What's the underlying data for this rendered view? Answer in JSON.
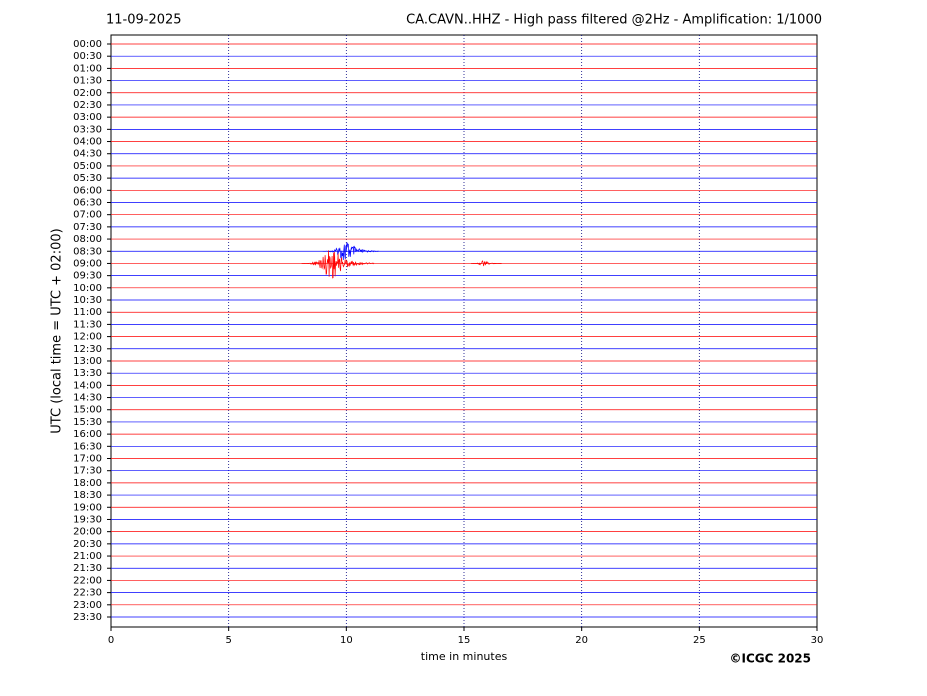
{
  "chart_data": {
    "type": "helicorder",
    "date": "11-09-2025",
    "title": "CA.CAVN..HHZ - High pass filtered @2Hz - Amplification: 1/1000",
    "ylabel": "UTC (local time = UTC + 02:00)",
    "xlabel": "time in minutes",
    "credit": "©ICGC 2025",
    "categories": [
      "00:00",
      "00:30",
      "01:00",
      "01:30",
      "02:00",
      "02:30",
      "03:00",
      "03:30",
      "04:00",
      "04:30",
      "05:00",
      "05:30",
      "06:00",
      "06:30",
      "07:00",
      "07:30",
      "08:00",
      "08:30",
      "09:00",
      "09:30",
      "10:00",
      "10:30",
      "11:00",
      "11:30",
      "12:00",
      "12:30",
      "13:00",
      "13:30",
      "14:00",
      "14:30",
      "15:00",
      "15:30",
      "16:00",
      "16:30",
      "17:00",
      "17:30",
      "18:00",
      "18:30",
      "19:00",
      "19:30",
      "20:00",
      "20:30",
      "21:00",
      "21:30",
      "22:00",
      "22:30",
      "23:00",
      "23:30"
    ],
    "colors": [
      "#ff0000",
      "#0000ff"
    ],
    "xlim": [
      0,
      30
    ],
    "xticks": [
      0,
      5,
      10,
      15,
      20,
      25,
      30
    ],
    "grid": true,
    "events": [
      {
        "row": "08:30",
        "x": [
          9.0,
          11.4
        ],
        "amplitude": 1.1
      },
      {
        "row": "09:00",
        "x": [
          8.1,
          11.2
        ],
        "amplitude": 1.6
      },
      {
        "row": "09:00",
        "x": [
          15.3,
          16.6
        ],
        "amplitude": 0.3
      }
    ]
  }
}
